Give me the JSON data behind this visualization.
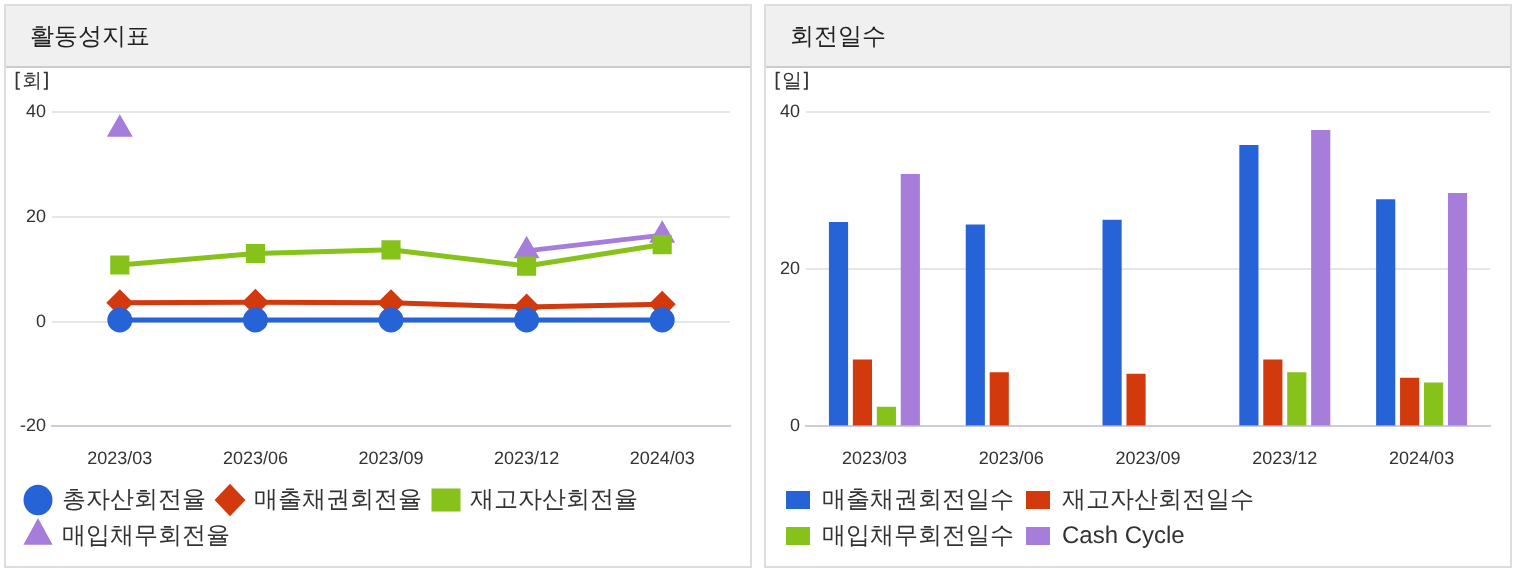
{
  "chart_data": [
    {
      "type": "line",
      "title": "활동성지표",
      "ylabel": "[회]",
      "categories": [
        "2023/03",
        "2023/06",
        "2023/09",
        "2023/12",
        "2024/03"
      ],
      "ylim": [
        -20,
        40
      ],
      "yticks": [
        -20,
        0,
        20,
        40
      ],
      "grid": "y",
      "legend": "bottom",
      "series": [
        {
          "name": "총자산회전율",
          "color": "#2563d6",
          "marker": "circle",
          "values": [
            0.3,
            0.3,
            0.3,
            0.3,
            0.3
          ]
        },
        {
          "name": "매출채권회전율",
          "color": "#d23a0e",
          "marker": "diamond",
          "values": [
            3.6,
            3.7,
            3.6,
            2.8,
            3.3
          ]
        },
        {
          "name": "재고자산회전율",
          "color": "#86c21a",
          "marker": "square",
          "values": [
            10.8,
            13.0,
            13.7,
            10.6,
            14.7
          ]
        },
        {
          "name": "매입채무회전율",
          "color": "#a67ddb",
          "marker": "triangle",
          "values": [
            36.7,
            null,
            null,
            13.5,
            16.5
          ]
        }
      ]
    },
    {
      "type": "bar",
      "title": "회전일수",
      "ylabel": "[일]",
      "categories": [
        "2023/03",
        "2023/06",
        "2023/09",
        "2023/12",
        "2024/03"
      ],
      "ylim": [
        0,
        40
      ],
      "yticks": [
        0,
        20,
        40
      ],
      "grid": "y",
      "legend": "bottom",
      "series": [
        {
          "name": "매출채권회전일수",
          "color": "#2563d6",
          "values": [
            26.0,
            25.7,
            26.3,
            35.8,
            28.9
          ]
        },
        {
          "name": "재고자산회전일수",
          "color": "#d23a0e",
          "values": [
            8.5,
            6.9,
            6.7,
            8.5,
            6.2
          ]
        },
        {
          "name": "매입채무회전일수",
          "color": "#86c21a",
          "values": [
            2.5,
            null,
            null,
            6.9,
            5.6
          ]
        },
        {
          "name": "Cash Cycle",
          "color": "#a67ddb",
          "values": [
            32.1,
            null,
            null,
            37.7,
            29.7
          ]
        }
      ]
    }
  ]
}
